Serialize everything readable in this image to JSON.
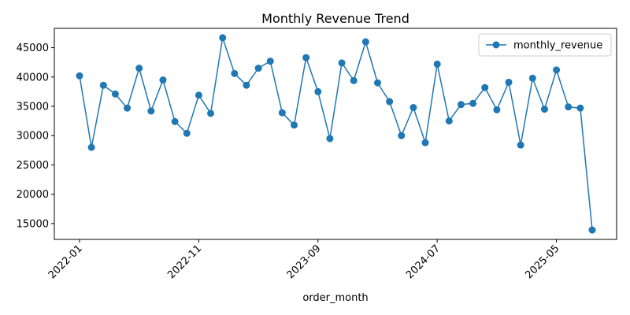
{
  "chart_data": {
    "type": "line",
    "title": "Monthly Revenue Trend",
    "xlabel": "order_month",
    "ylabel": "",
    "x_tick_labels": [
      "2022-01",
      "2022-11",
      "2023-09",
      "2024-07",
      "2025-05"
    ],
    "y_ticks": [
      15000,
      20000,
      25000,
      30000,
      35000,
      40000,
      45000
    ],
    "ylim": [
      12300,
      48300
    ],
    "legend_position": "top-right",
    "grid": false,
    "series": [
      {
        "name": "monthly_revenue",
        "color": "#1f77b4",
        "x": [
          "2022-01",
          "2022-02",
          "2022-03",
          "2022-04",
          "2022-05",
          "2022-06",
          "2022-07",
          "2022-08",
          "2022-09",
          "2022-10",
          "2022-11",
          "2022-12",
          "2023-01",
          "2023-02",
          "2023-03",
          "2023-04",
          "2023-05",
          "2023-06",
          "2023-07",
          "2023-08",
          "2023-09",
          "2023-10",
          "2023-11",
          "2023-12",
          "2024-01",
          "2024-02",
          "2024-03",
          "2024-04",
          "2024-05",
          "2024-06",
          "2024-07",
          "2024-08",
          "2024-09",
          "2024-10",
          "2024-11",
          "2024-12",
          "2025-01",
          "2025-02",
          "2025-03",
          "2025-04",
          "2025-05",
          "2025-06",
          "2025-07",
          "2025-08"
        ],
        "values": [
          40200,
          28000,
          38600,
          37100,
          34700,
          41500,
          34200,
          39500,
          32400,
          30400,
          36900,
          33800,
          46700,
          40600,
          38600,
          41500,
          42700,
          33900,
          31800,
          43300,
          37500,
          29500,
          42400,
          39400,
          46000,
          39000,
          35800,
          30000,
          34800,
          28800,
          42200,
          32500,
          35300,
          35500,
          38200,
          34400,
          39100,
          28400,
          39800,
          34500,
          41200,
          34900,
          34700,
          13900
        ]
      }
    ]
  }
}
